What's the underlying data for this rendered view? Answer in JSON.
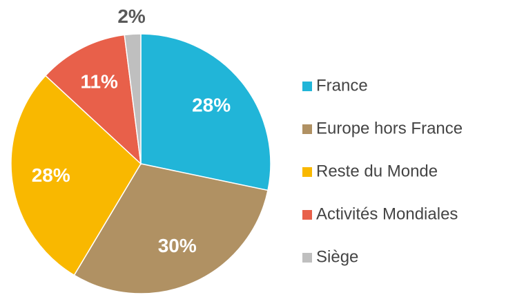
{
  "chart_data": {
    "type": "pie",
    "categories": [
      "France",
      "Europe hors France",
      "Reste du Monde",
      "Activités Mondiales",
      "Siège"
    ],
    "values": [
      28,
      30,
      28,
      11,
      2
    ],
    "value_labels": [
      "28%",
      "30%",
      "28%",
      "11%",
      "2%"
    ],
    "colors": [
      "#21b5d8",
      "#b09163",
      "#f9b800",
      "#e8604a",
      "#bfbfbf"
    ],
    "legend": "right"
  }
}
